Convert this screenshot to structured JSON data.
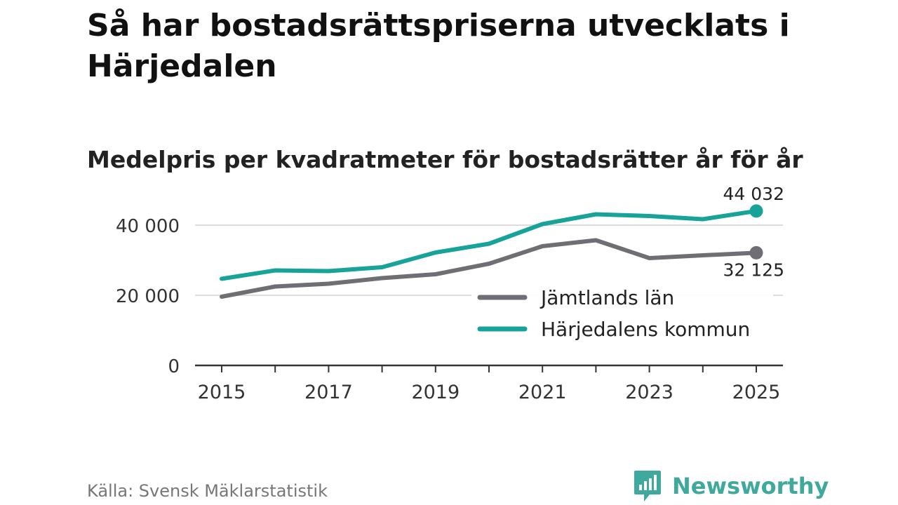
{
  "title": "Så har bostadsrättspriserna utvecklats i Härjedalen",
  "subtitle": "Medelpris per kvadratmeter för bostadsrätter år för år",
  "source": "Källa: Svensk Mäklarstatistik",
  "brand": {
    "name": "Newsworthy",
    "icon": "newsworthy-logo-icon",
    "color": "#3ea99c"
  },
  "chart_data": {
    "type": "line",
    "title": "Medelpris per kvadratmeter för bostadsrätter år för år",
    "xlabel": "",
    "ylabel": "",
    "x": [
      2015,
      2016,
      2017,
      2018,
      2019,
      2020,
      2021,
      2022,
      2023,
      2024,
      2025
    ],
    "x_ticks": [
      "2015",
      "2017",
      "2019",
      "2021",
      "2023",
      "2025"
    ],
    "y_ticks": [
      "0",
      "20 000",
      "40 000"
    ],
    "y_tick_values": [
      0,
      20000,
      40000
    ],
    "ylim": [
      0,
      45000
    ],
    "grid": true,
    "legend_position": "right-center",
    "series": [
      {
        "name": "Jämtlands län",
        "color": "#6f6e75",
        "values": [
          19600,
          22500,
          23300,
          24900,
          26000,
          29000,
          34000,
          35700,
          30600,
          31400,
          32125
        ],
        "end_label": "32 125"
      },
      {
        "name": "Härjedalens kommun",
        "color": "#17a399",
        "values": [
          24700,
          27100,
          26900,
          28000,
          32200,
          34700,
          40300,
          43100,
          42600,
          41700,
          44032
        ],
        "end_label": "44 032"
      }
    ]
  }
}
